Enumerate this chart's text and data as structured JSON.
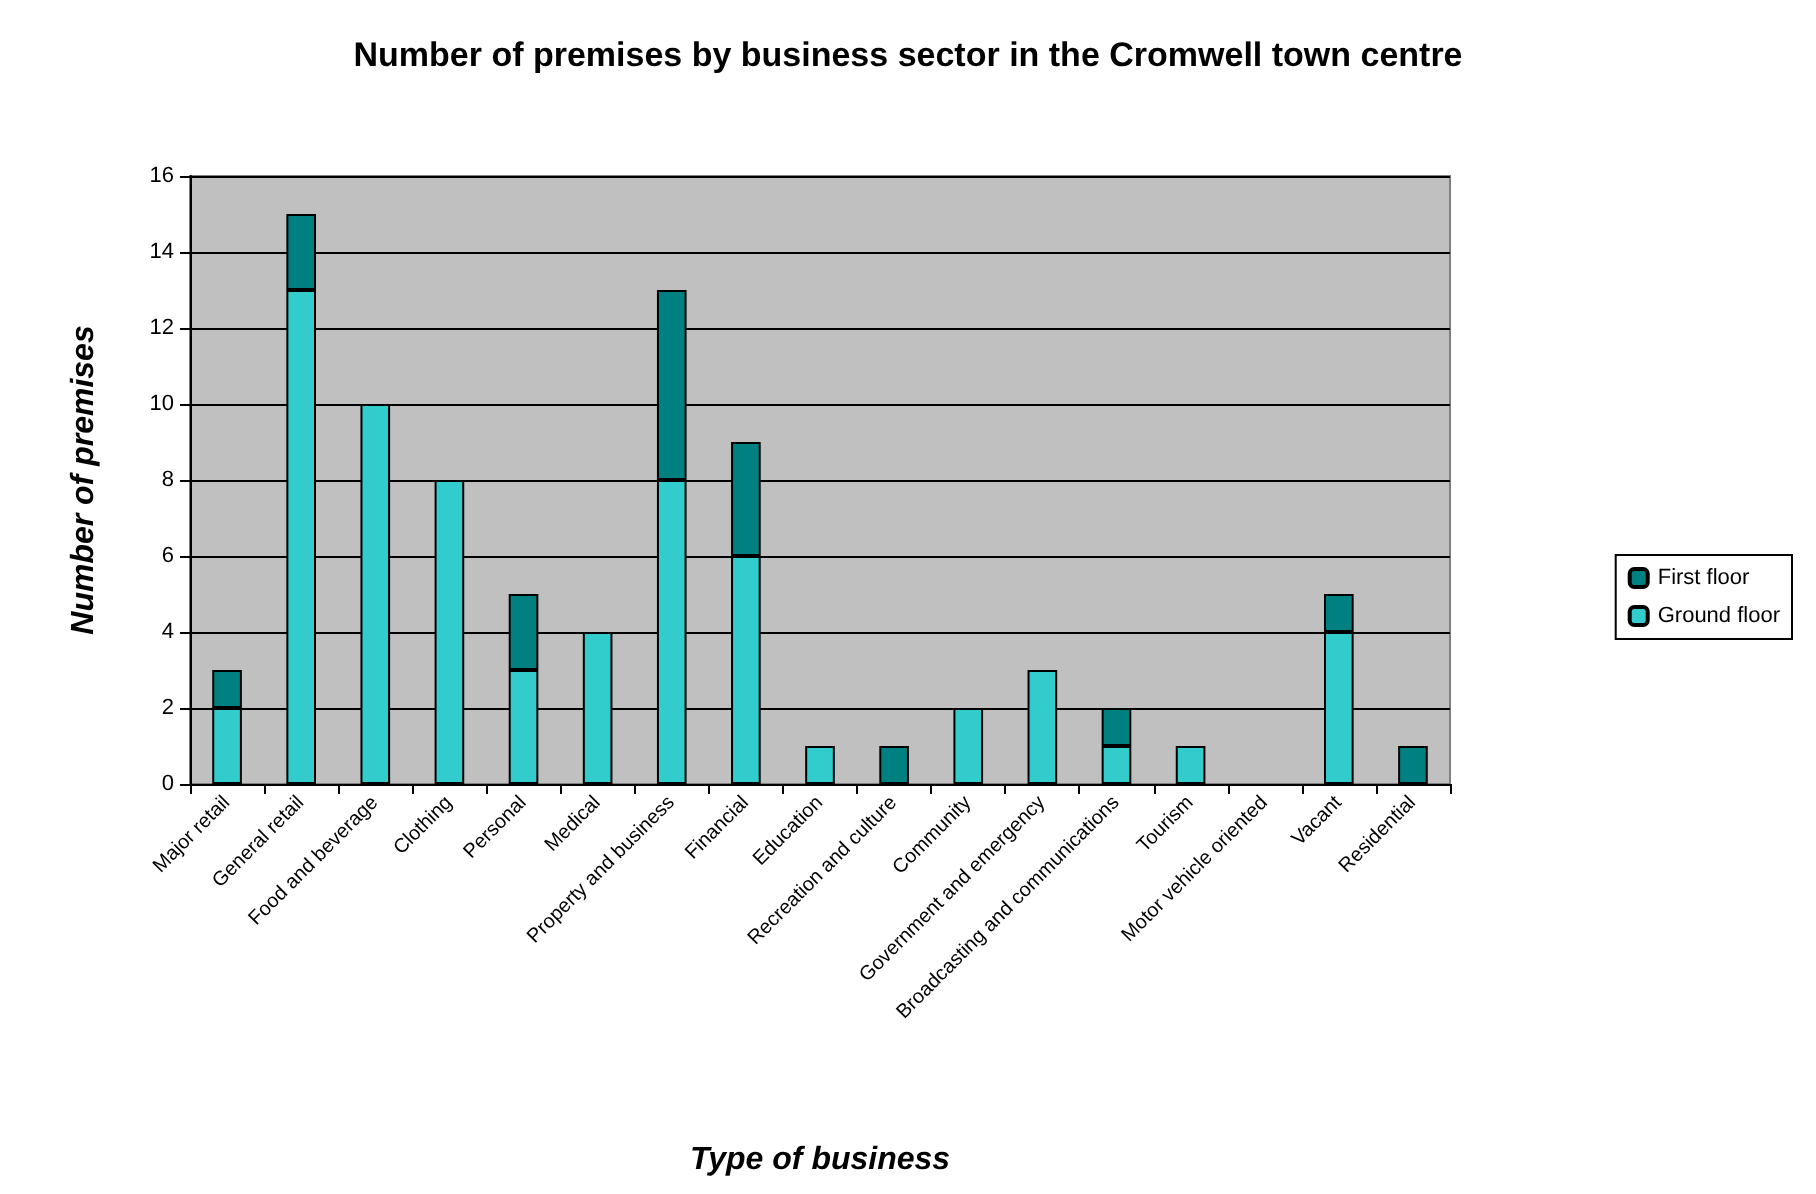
{
  "chart_data": {
    "type": "bar",
    "title": "Number of premises by business sector in the Cromwell town centre",
    "xlabel": "Type of business",
    "ylabel": "Number of premises",
    "categories": [
      "Major retail",
      "General retail",
      "Food and beverage",
      "Clothing",
      "Personal",
      "Medical",
      "Property and business",
      "Financial",
      "Education",
      "Recreation and culture",
      "Community",
      "Government and emergency",
      "Broadcasting and communications",
      "Tourism",
      "Motor vehicle oriented",
      "Vacant",
      "Residential"
    ],
    "series": [
      {
        "name": "Ground floor",
        "color": "#33cccc",
        "values": [
          2,
          13,
          10,
          8,
          3,
          4,
          8,
          6,
          1,
          0,
          2,
          3,
          1,
          1,
          0,
          4,
          0
        ]
      },
      {
        "name": "First floor",
        "color": "#008080",
        "values": [
          1,
          2,
          0,
          0,
          2,
          0,
          5,
          3,
          0,
          1,
          0,
          0,
          1,
          0,
          0,
          1,
          1
        ]
      }
    ],
    "stacked": true,
    "ylim": [
      0,
      16
    ],
    "yticks": [
      0,
      2,
      4,
      6,
      8,
      10,
      12,
      14,
      16
    ],
    "grid": "y",
    "legend": "right"
  }
}
